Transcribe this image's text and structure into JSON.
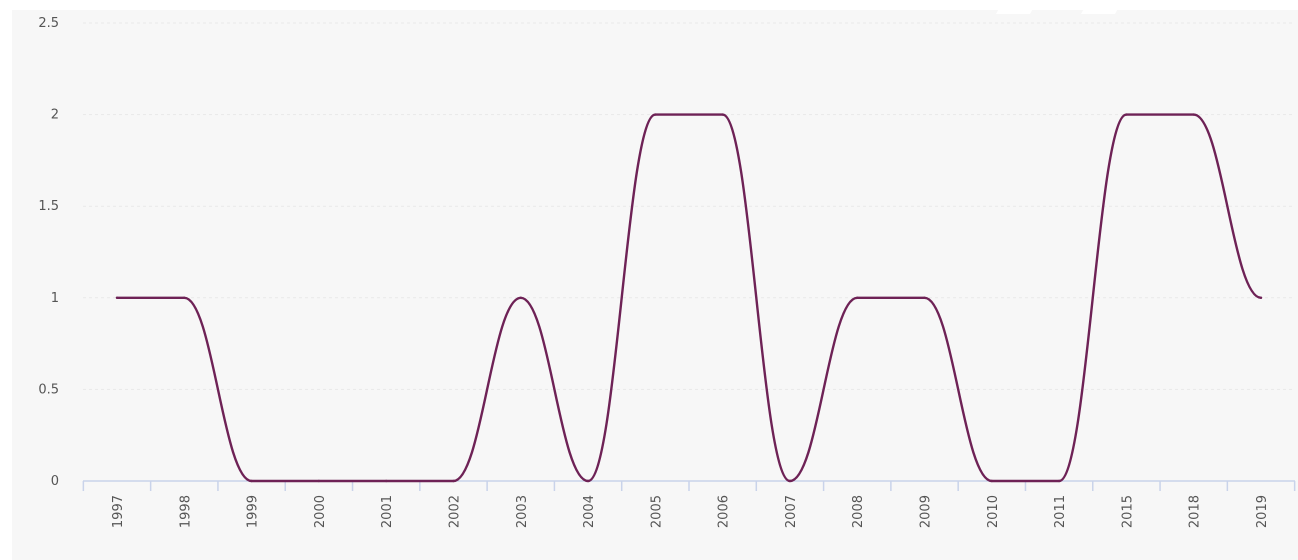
{
  "chart_data": {
    "type": "line",
    "categories": [
      "1997",
      "1998",
      "1999",
      "2000",
      "2001",
      "2002",
      "2003",
      "2004",
      "2005",
      "2006",
      "2007",
      "2008",
      "2009",
      "2010",
      "2011",
      "2015",
      "2018",
      "2019"
    ],
    "series": [
      {
        "values": [
          1,
          1,
          0,
          0,
          0,
          0,
          1,
          0,
          2,
          2,
          0,
          1,
          1,
          0,
          0,
          2,
          2,
          1
        ]
      }
    ],
    "title": "",
    "xlabel": "",
    "ylabel": "",
    "ylim": [
      0,
      2.5
    ],
    "y_ticks": [
      0,
      0.5,
      1,
      1.5,
      2,
      2.5
    ],
    "y_tick_labels": [
      "0",
      "0.5",
      "1",
      "1.5",
      "2",
      "2.5"
    ],
    "grid": true,
    "legend": "none",
    "smooth": true,
    "colors": {
      "line": "#6e2256",
      "grid": "#e9e9e9",
      "axis": "#c9d3ea",
      "background": "#f7f7f7"
    }
  }
}
